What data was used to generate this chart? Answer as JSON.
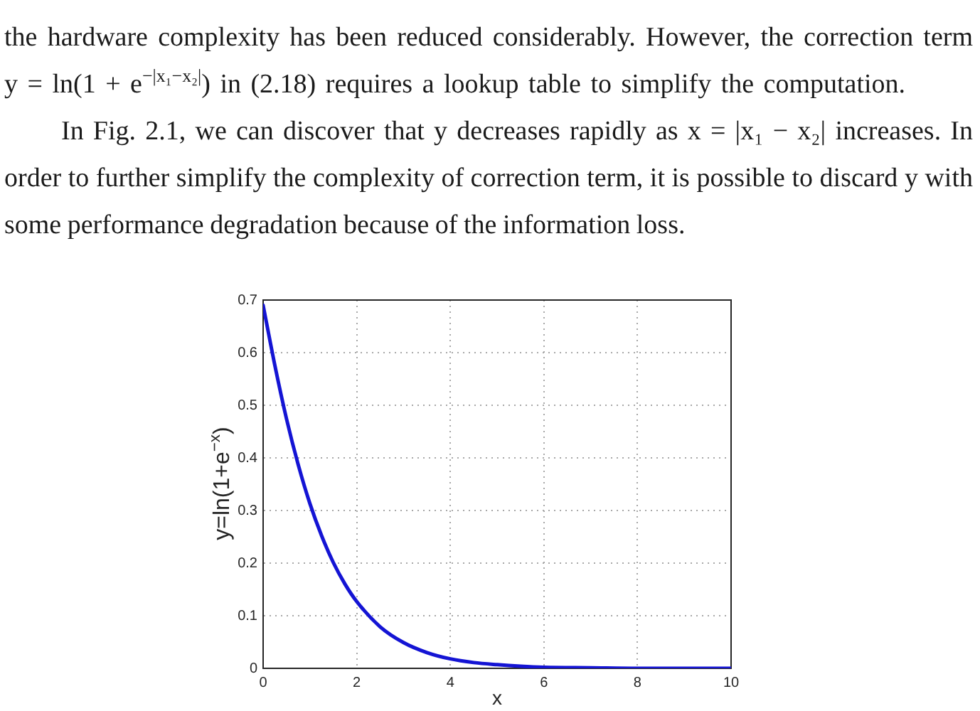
{
  "chart_data": {
    "type": "line",
    "annotations": [
      "the hardware complexity has been reduced considerably. However, the correction term y = ln(1 + e$^{−|x₁−x₂|}$) in (2.18) requires a lookup table to simplify the computation.",
      "In Fig. 2.1, we can discover that y decreases rapidly as x = |x₁ − x₂| increases. In order to further simplify the complexity of correction term, it is possible to discard y with some performance degradation because of the information loss."
    ],
    "xlabel": "x",
    "ylabel": "y=ln(1+e$^{−x}$)",
    "x": [
      0,
      0.25,
      0.5,
      0.75,
      1,
      1.25,
      1.5,
      1.75,
      2,
      2.5,
      3,
      3.5,
      4,
      4.5,
      5,
      5.5,
      6,
      7,
      8,
      9,
      10
    ],
    "series": [
      {
        "color": "#1414d4",
        "values": [
          0.69,
          0.576,
          0.474,
          0.387,
          0.313,
          0.252,
          0.201,
          0.16,
          0.127,
          0.079,
          0.049,
          0.03,
          0.018,
          0.011,
          0.007,
          0.004,
          0.002,
          0.001,
          0,
          0,
          0
        ]
      }
    ],
    "xlim": [
      0,
      10
    ],
    "xticks": [
      0,
      2,
      4,
      6,
      8,
      10
    ],
    "ylim": [
      0,
      0.7
    ],
    "yticks": [
      0,
      0.1,
      0.2,
      0.3,
      0.4,
      0.5,
      0.6,
      0.7
    ],
    "grid": true
  }
}
